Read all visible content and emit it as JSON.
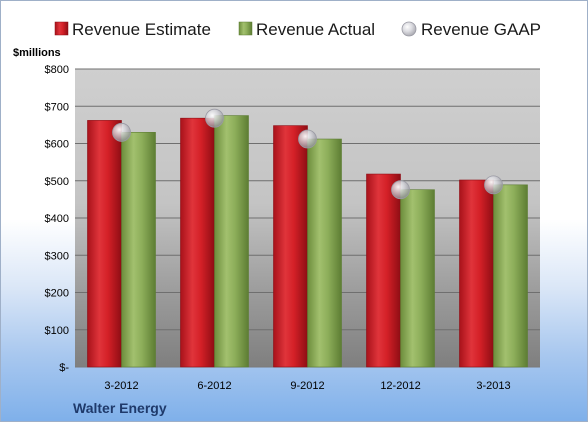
{
  "chart_data": {
    "type": "bar",
    "title": "",
    "unit_label": "$millions",
    "company": "Walter Energy",
    "categories": [
      "3-2012",
      "6-2012",
      "9-2012",
      "12-2012",
      "3-2013"
    ],
    "series": [
      {
        "name": "Revenue Estimate",
        "kind": "bar",
        "color": "#d42027",
        "values": [
          662,
          668,
          648,
          518,
          502
        ]
      },
      {
        "name": "Revenue Actual",
        "kind": "bar",
        "color": "#8dae5a",
        "values": [
          630,
          675,
          612,
          476,
          489
        ]
      },
      {
        "name": "Revenue GAAP",
        "kind": "marker",
        "color": "#c0c0c8",
        "values": [
          630,
          668,
          612,
          476,
          489
        ]
      }
    ],
    "ylim": [
      0,
      800
    ],
    "y_ticks": [
      {
        "value": 0,
        "label": "$-"
      },
      {
        "value": 100,
        "label": "$100"
      },
      {
        "value": 200,
        "label": "$200"
      },
      {
        "value": 300,
        "label": "$300"
      },
      {
        "value": 400,
        "label": "$400"
      },
      {
        "value": 500,
        "label": "$500"
      },
      {
        "value": 600,
        "label": "$600"
      },
      {
        "value": 700,
        "label": "$700"
      },
      {
        "value": 800,
        "label": "$800"
      }
    ],
    "grid": true,
    "legend_position": "top"
  }
}
